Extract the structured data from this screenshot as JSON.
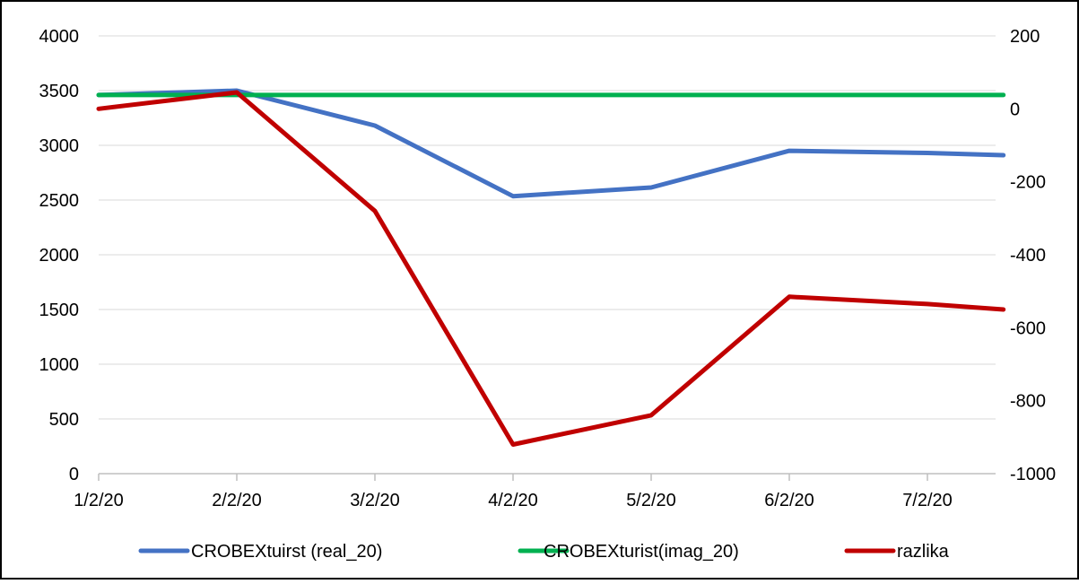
{
  "chart_data": {
    "type": "line",
    "title": "",
    "xlabel": "",
    "ylabel": "",
    "categories": [
      "1/2/20",
      "2/2/20",
      "3/2/20",
      "4/2/20",
      "5/2/20",
      "6/2/20",
      "7/2/20"
    ],
    "x": [
      0,
      1,
      2,
      3,
      4,
      5,
      6,
      6.55
    ],
    "y_left": {
      "min": 0,
      "max": 4000,
      "ticks": [
        "0",
        "500",
        "1000",
        "1500",
        "2000",
        "2500",
        "3000",
        "3500",
        "4000"
      ]
    },
    "y_right": {
      "min": -1000,
      "max": 200,
      "ticks": [
        "-1000",
        "-800",
        "-600",
        "-400",
        "-200",
        "0",
        "200"
      ]
    },
    "grid": true,
    "legend": "bottom",
    "series": [
      {
        "name": "CROBEXtuirst (real_20)",
        "axis": "left",
        "color": "#4472C4",
        "values": [
          3460,
          3500,
          3180,
          2535,
          2615,
          2950,
          2930,
          2910
        ]
      },
      {
        "name": "CROBEXturist(imag_20)",
        "axis": "left",
        "color": "#00B050",
        "values": [
          3460,
          3460,
          3460,
          3460,
          3460,
          3460,
          3460,
          3460
        ]
      },
      {
        "name": "razlika",
        "axis": "right",
        "color": "#C00000",
        "values": [
          0,
          45,
          -280,
          -920,
          -840,
          -515,
          -535,
          -550
        ]
      }
    ]
  }
}
